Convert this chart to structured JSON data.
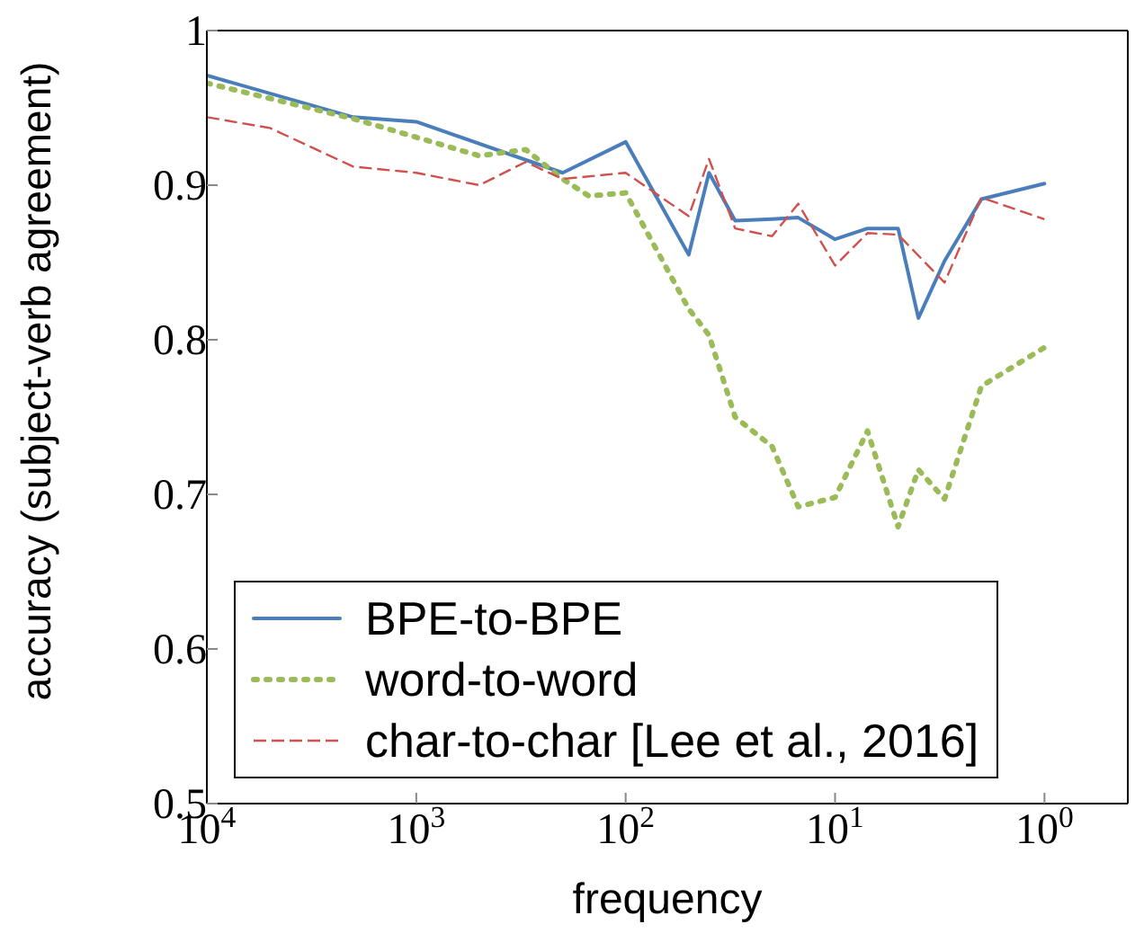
{
  "chart_data": {
    "type": "line",
    "xlabel": "frequency",
    "ylabel": "accuracy (subject-verb agreement)",
    "log": "x",
    "xlim": [
      10000,
      0.4
    ],
    "xticks": [
      {
        "value": 10000,
        "label": "10$^{4}$"
      },
      {
        "value": 1000,
        "label": "10$^{3}$"
      },
      {
        "value": 100,
        "label": "10$^{2}$"
      },
      {
        "value": 10,
        "label": "10$^{1}$"
      },
      {
        "value": 1,
        "label": "10$^{0}$"
      }
    ],
    "ylim": [
      0.5,
      1
    ],
    "yticks": [
      0.5,
      0.6,
      0.7,
      0.8,
      0.9,
      1
    ],
    "grid": false,
    "legend": "bottom left",
    "marker": "none",
    "series": [
      {
        "name": "BPE-to-BPE",
        "color": "#4a7ebb",
        "line_style": "solid",
        "x": [
          10000,
          2000,
          1000,
          200,
          100,
          50,
          40,
          30,
          20,
          15,
          10,
          7,
          5,
          4,
          3,
          2,
          1
        ],
        "values": [
          0.971,
          0.944,
          0.941,
          0.908,
          0.928,
          0.855,
          0.908,
          0.877,
          0.878,
          0.879,
          0.865,
          0.872,
          0.872,
          0.814,
          0.851,
          0.891,
          0.901
        ]
      },
      {
        "name": "word-to-word",
        "color": "#9bbb59",
        "line_style": "dotted",
        "x": [
          10000,
          2000,
          500,
          300,
          200,
          150,
          100,
          50,
          40,
          30,
          20,
          15,
          10,
          7,
          5,
          4,
          3,
          2,
          1
        ],
        "values": [
          0.966,
          0.943,
          0.919,
          0.923,
          0.904,
          0.893,
          0.895,
          0.82,
          0.803,
          0.75,
          0.731,
          0.692,
          0.698,
          0.741,
          0.679,
          0.716,
          0.697,
          0.77,
          0.795
        ]
      },
      {
        "name": "char-to-char [Lee et al., 2016]",
        "color": "#d0504d",
        "line_style": "dashed",
        "x": [
          10000,
          5000,
          2000,
          1000,
          500,
          300,
          200,
          100,
          50,
          40,
          30,
          20,
          15,
          10,
          7,
          5,
          3,
          2,
          1
        ],
        "values": [
          0.944,
          0.937,
          0.912,
          0.908,
          0.9,
          0.915,
          0.904,
          0.908,
          0.88,
          0.917,
          0.872,
          0.867,
          0.888,
          0.848,
          0.869,
          0.868,
          0.837,
          0.892,
          0.878
        ]
      }
    ]
  }
}
